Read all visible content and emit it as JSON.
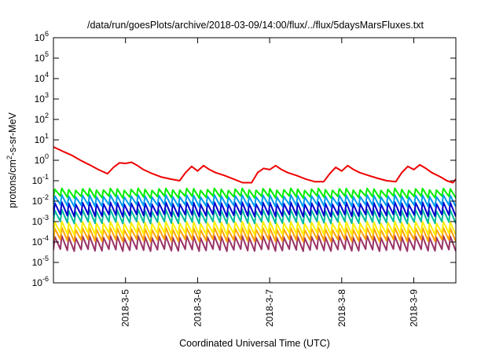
{
  "chart_data": {
    "type": "line",
    "title": "/data/run/goesPlots/archive/2018-03-09/14:00/flux/../flux/5daysMarsFluxes.txt",
    "xlabel": "Coordinated Universal Time (UTC)",
    "ylabel": {
      "base": "protons/cm",
      "sup": "2",
      "rest": "-s-sr-MeV"
    },
    "x_range": [
      "2018-03-04T00:00",
      "2018-03-09T14:00"
    ],
    "x_ticks": [
      {
        "label": "2018-3-5",
        "date": "2018-03-05T00:00"
      },
      {
        "label": "2018-3-6",
        "date": "2018-03-06T00:00"
      },
      {
        "label": "2018-3-7",
        "date": "2018-03-07T00:00"
      },
      {
        "label": "2018-3-8",
        "date": "2018-03-08T00:00"
      },
      {
        "label": "2018-3-9",
        "date": "2018-03-09T00:00"
      }
    ],
    "y_scale": "log",
    "y_range": [
      1e-06,
      1000000.0
    ],
    "y_ticks": [
      {
        "base": "10",
        "exp": "6"
      },
      {
        "base": "10",
        "exp": "5"
      },
      {
        "base": "10",
        "exp": "4"
      },
      {
        "base": "10",
        "exp": "3"
      },
      {
        "base": "10",
        "exp": "2"
      },
      {
        "base": "10",
        "exp": "1"
      },
      {
        "base": "10",
        "exp": "0"
      },
      {
        "base": "10",
        "exp": "-1"
      },
      {
        "base": "10",
        "exp": "-2"
      },
      {
        "base": "10",
        "exp": "-3"
      },
      {
        "base": "10",
        "exp": "-4"
      },
      {
        "base": "10",
        "exp": "-5"
      },
      {
        "base": "10",
        "exp": "-6"
      }
    ],
    "grid": false,
    "legend": "none",
    "series": [
      {
        "color": "#ee0000",
        "values": [
          [
            "2018-03-04T00:00",
            4.5
          ],
          [
            "2018-03-04T03:00",
            2.8
          ],
          [
            "2018-03-04T06:00",
            1.8
          ],
          [
            "2018-03-04T09:00",
            1.0
          ],
          [
            "2018-03-04T12:00",
            0.6
          ],
          [
            "2018-03-04T15:00",
            0.35
          ],
          [
            "2018-03-04T18:00",
            0.22
          ],
          [
            "2018-03-04T20:00",
            0.45
          ],
          [
            "2018-03-04T22:00",
            0.75
          ],
          [
            "2018-03-05T00:00",
            0.7
          ],
          [
            "2018-03-05T02:00",
            0.8
          ],
          [
            "2018-03-05T04:00",
            0.55
          ],
          [
            "2018-03-05T06:00",
            0.35
          ],
          [
            "2018-03-05T09:00",
            0.22
          ],
          [
            "2018-03-05T12:00",
            0.15
          ],
          [
            "2018-03-05T15:00",
            0.12
          ],
          [
            "2018-03-05T18:00",
            0.1
          ],
          [
            "2018-03-05T20:00",
            0.25
          ],
          [
            "2018-03-05T22:00",
            0.5
          ],
          [
            "2018-03-06T00:00",
            0.3
          ],
          [
            "2018-03-06T02:00",
            0.55
          ],
          [
            "2018-03-06T04:00",
            0.35
          ],
          [
            "2018-03-06T06:00",
            0.25
          ],
          [
            "2018-03-06T09:00",
            0.18
          ],
          [
            "2018-03-06T12:00",
            0.12
          ],
          [
            "2018-03-06T15:00",
            0.08
          ],
          [
            "2018-03-06T18:00",
            0.08
          ],
          [
            "2018-03-06T20:00",
            0.25
          ],
          [
            "2018-03-06T22:00",
            0.4
          ],
          [
            "2018-03-07T00:00",
            0.35
          ],
          [
            "2018-03-07T02:00",
            0.55
          ],
          [
            "2018-03-07T04:00",
            0.35
          ],
          [
            "2018-03-07T06:00",
            0.25
          ],
          [
            "2018-03-07T09:00",
            0.18
          ],
          [
            "2018-03-07T12:00",
            0.12
          ],
          [
            "2018-03-07T15:00",
            0.09
          ],
          [
            "2018-03-07T18:00",
            0.09
          ],
          [
            "2018-03-07T20:00",
            0.22
          ],
          [
            "2018-03-07T22:00",
            0.45
          ],
          [
            "2018-03-08T00:00",
            0.3
          ],
          [
            "2018-03-08T02:00",
            0.55
          ],
          [
            "2018-03-08T04:00",
            0.35
          ],
          [
            "2018-03-08T06:00",
            0.25
          ],
          [
            "2018-03-08T09:00",
            0.18
          ],
          [
            "2018-03-08T12:00",
            0.13
          ],
          [
            "2018-03-08T15:00",
            0.1
          ],
          [
            "2018-03-08T18:00",
            0.09
          ],
          [
            "2018-03-08T20:00",
            0.25
          ],
          [
            "2018-03-08T22:00",
            0.5
          ],
          [
            "2018-03-09T00:00",
            0.35
          ],
          [
            "2018-03-09T02:00",
            0.6
          ],
          [
            "2018-03-09T04:00",
            0.4
          ],
          [
            "2018-03-09T06:00",
            0.25
          ],
          [
            "2018-03-09T09:00",
            0.15
          ],
          [
            "2018-03-09T11:00",
            0.1
          ],
          [
            "2018-03-09T13:00",
            0.08
          ],
          [
            "2018-03-09T14:00",
            0.12
          ]
        ]
      },
      {
        "color": "#00ee00",
        "sawtooth": {
          "peak": 0.038,
          "trough": 0.016,
          "teeth": 58
        }
      },
      {
        "color": "#0099ee",
        "sawtooth": {
          "peak": 0.018,
          "trough": 0.006,
          "teeth": 58
        }
      },
      {
        "color": "#0000cc",
        "sawtooth": {
          "peak": 0.008,
          "trough": 0.002,
          "teeth": 58
        }
      },
      {
        "color": "#00bb99",
        "sawtooth": {
          "peak": 0.0035,
          "trough": 0.0009,
          "teeth": 58
        }
      },
      {
        "color": "#ffee00",
        "sawtooth": {
          "peak": 0.0009,
          "trough": 0.00025,
          "teeth": 58
        }
      },
      {
        "color": "#ffa000",
        "sawtooth": {
          "peak": 0.00045,
          "trough": 0.00012,
          "teeth": 58
        }
      },
      {
        "color": "#993366",
        "sawtooth": {
          "peak": 0.00018,
          "trough": 4e-05,
          "teeth": 58
        }
      }
    ]
  }
}
